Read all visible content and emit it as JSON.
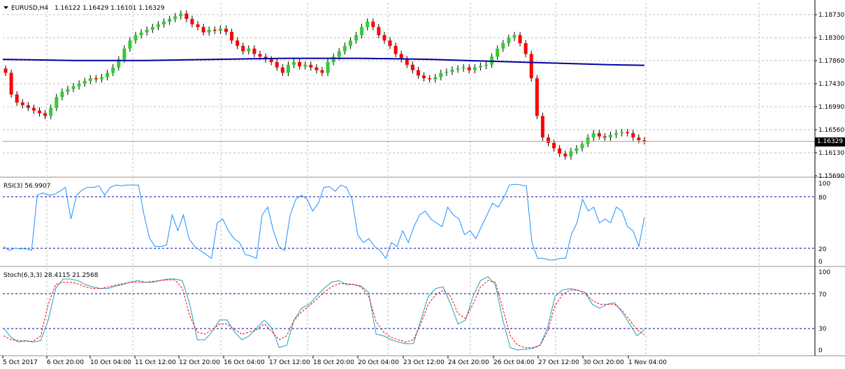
{
  "title_bar": {
    "symbol_label": "EURUSD,H4",
    "ohlc": "1.16122 1.16429 1.16101 1.16329"
  },
  "current_price": "1.16329",
  "colors": {
    "bull": "#33cc33",
    "bear": "#ff0000",
    "ma": "#0000a0",
    "rsi": "#1e90ff",
    "stoch_main": "#20a0c0",
    "stoch_signal": "#ff0000",
    "grid": "#c0c0c0",
    "level": "#0000a0"
  },
  "price_axis": [
    "1.18730",
    "1.18300",
    "1.17860",
    "1.17430",
    "1.16990",
    "1.16560",
    "1.16130",
    "1.15690"
  ],
  "rsi_panel": {
    "label": "RSI(3) 56.9907",
    "axis": [
      "100",
      "80",
      "20",
      "0"
    ]
  },
  "stoch_panel": {
    "label": "Stoch(6,3,3) 28.4115 21.2568",
    "axis": [
      "100",
      "70",
      "30",
      "0"
    ]
  },
  "time_axis": [
    "5 Oct 2017",
    "6 Oct 20:00",
    "10 Oct 04:00",
    "11 Oct 12:00",
    "12 Oct 20:00",
    "16 Oct 04:00",
    "17 Oct 12:00",
    "18 Oct 20:00",
    "20 Oct 04:00",
    "23 Oct 12:00",
    "24 Oct 20:00",
    "26 Oct 04:00",
    "27 Oct 12:00",
    "30 Oct 20:00",
    "1 Nov 04:00"
  ],
  "chart_data": [
    {
      "type": "candlestick",
      "series": [
        {
          "name": "EURUSD,H4",
          "close": [
            1.176,
            1.172,
            1.1705,
            1.17,
            1.1695,
            1.169,
            1.1685,
            1.168,
            1.1695,
            1.1715,
            1.1725,
            1.173,
            1.1735,
            1.174,
            1.1745,
            1.175,
            1.1748,
            1.1752,
            1.176,
            1.177,
            1.1785,
            1.1805,
            1.182,
            1.183,
            1.1835,
            1.184,
            1.1845,
            1.185,
            1.1855,
            1.186,
            1.1865,
            1.187,
            1.186,
            1.185,
            1.1845,
            1.1835,
            1.184,
            1.1838,
            1.1842,
            1.1836,
            1.182,
            1.181,
            1.18,
            1.1805,
            1.1795,
            1.179,
            1.1785,
            1.178,
            1.177,
            1.176,
            1.1775,
            1.178,
            1.1772,
            1.1775,
            1.177,
            1.1765,
            1.176,
            1.178,
            1.179,
            1.18,
            1.181,
            1.182,
            1.183,
            1.1845,
            1.1855,
            1.1845,
            1.183,
            1.182,
            1.181,
            1.1795,
            1.1785,
            1.1775,
            1.1765,
            1.1755,
            1.175,
            1.1748,
            1.1752,
            1.176,
            1.1762,
            1.1766,
            1.1768,
            1.177,
            1.1765,
            1.177,
            1.1773,
            1.1775,
            1.179,
            1.1805,
            1.1815,
            1.1825,
            1.183,
            1.1815,
            1.1795,
            1.175,
            1.168,
            1.164,
            1.163,
            1.162,
            1.161,
            1.1605,
            1.1615,
            1.162,
            1.1628,
            1.164,
            1.1648,
            1.1642,
            1.164,
            1.1645,
            1.1648,
            1.165,
            1.1648,
            1.164,
            1.1635,
            1.1633
          ]
        },
        {
          "name": "MA",
          "values": [
            1.1785,
            1.1784,
            1.1783,
            1.1783,
            1.1783,
            1.1784,
            1.1785,
            1.1786,
            1.1787,
            1.1787,
            1.1787,
            1.1786,
            1.1785,
            1.1783,
            1.1781,
            1.1779,
            1.1777,
            1.1775,
            1.1774
          ]
        }
      ],
      "ylim": [
        1.1569,
        1.189
      ]
    },
    {
      "type": "line",
      "series": [
        {
          "name": "RSI(3)",
          "values": [
            20,
            15,
            18,
            17,
            17,
            15,
            85,
            88,
            85,
            86,
            90,
            95,
            55,
            85,
            92,
            95,
            95,
            97,
            85,
            95,
            98,
            97,
            98,
            98,
            98,
            60,
            30,
            20,
            20,
            22,
            60,
            40,
            60,
            30,
            20,
            15,
            10,
            5,
            50,
            55,
            40,
            30,
            25,
            10,
            8,
            5,
            60,
            70,
            40,
            20,
            15,
            60,
            80,
            85,
            80,
            65,
            75,
            95,
            96,
            90,
            98,
            95,
            80,
            35,
            25,
            30,
            20,
            15,
            5,
            25,
            20,
            40,
            25,
            45,
            60,
            65,
            55,
            50,
            45,
            70,
            60,
            55,
            35,
            40,
            30,
            45,
            60,
            75,
            70,
            82,
            98,
            99,
            98,
            97,
            25,
            5,
            5,
            3,
            3,
            5,
            5,
            35,
            50,
            80,
            65,
            70,
            50,
            55,
            50,
            70,
            65,
            45,
            40,
            20,
            57
          ]
        }
      ],
      "ylim": [
        0,
        100
      ]
    },
    {
      "type": "line",
      "series": [
        {
          "name": "Main",
          "values": [
            30,
            18,
            12,
            14,
            12,
            14,
            40,
            80,
            92,
            92,
            90,
            85,
            82,
            80,
            80,
            83,
            85,
            88,
            90,
            88,
            88,
            90,
            92,
            92,
            90,
            60,
            15,
            15,
            25,
            40,
            40,
            25,
            15,
            20,
            30,
            40,
            30,
            5,
            8,
            40,
            55,
            60,
            70,
            80,
            88,
            90,
            85,
            85,
            83,
            75,
            22,
            20,
            15,
            12,
            10,
            10,
            40,
            70,
            80,
            82,
            60,
            35,
            40,
            70,
            90,
            95,
            85,
            40,
            5,
            2,
            3,
            4,
            8,
            30,
            70,
            78,
            80,
            78,
            75,
            60,
            55,
            60,
            62,
            50,
            35,
            20,
            28
          ]
        },
        {
          "name": "Signal",
          "values": [
            20,
            15,
            14,
            13,
            13,
            20,
            60,
            85,
            88,
            88,
            86,
            82,
            80,
            80,
            82,
            84,
            86,
            88,
            88,
            88,
            89,
            90,
            91,
            91,
            80,
            45,
            25,
            22,
            28,
            35,
            35,
            28,
            22,
            25,
            28,
            35,
            25,
            15,
            20,
            40,
            50,
            58,
            66,
            75,
            82,
            86,
            86,
            85,
            82,
            70,
            38,
            25,
            18,
            15,
            12,
            15,
            35,
            60,
            72,
            78,
            70,
            48,
            42,
            60,
            82,
            90,
            88,
            55,
            20,
            8,
            5,
            5,
            8,
            25,
            58,
            72,
            78,
            78,
            75,
            65,
            60,
            60,
            60,
            52,
            40,
            28,
            21
          ]
        }
      ],
      "ylim": [
        0,
        100
      ]
    }
  ]
}
